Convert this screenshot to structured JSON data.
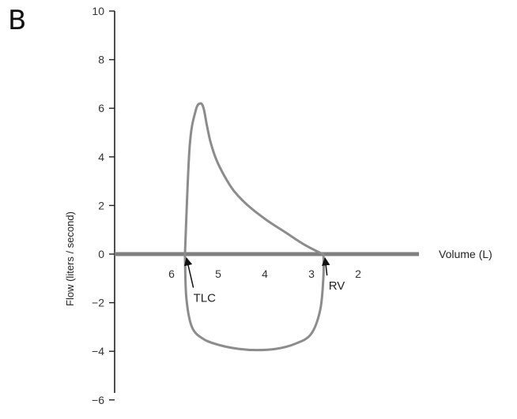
{
  "panel_label": "B",
  "chart_data": {
    "type": "line",
    "title": "",
    "xlabel": "Volume (L)",
    "ylabel": "Flow (liters / second)",
    "x_reversed": true,
    "xlim": [
      8,
      1.2
    ],
    "ylim": [
      -6.5,
      10
    ],
    "x_ticks": [
      6,
      5,
      4,
      3,
      2
    ],
    "x_tick_labels": [
      "6",
      "5",
      "4",
      "3",
      "2"
    ],
    "y_ticks": [
      10,
      8,
      6,
      4,
      2,
      0,
      -2,
      -4,
      -6
    ],
    "y_tick_labels": [
      "10",
      "8",
      "6",
      "4",
      "2",
      "0",
      "−2",
      "−4",
      "−6"
    ],
    "grid": false,
    "legend": "none",
    "series": [
      {
        "x": [
          5.95,
          5.85,
          5.72,
          5.62,
          5.55,
          5.48,
          5.4,
          5.28,
          5.1,
          4.9,
          4.6,
          4.2,
          3.8,
          3.4,
          3.05,
          2.98
        ],
        "values": [
          0.0,
          4.4,
          5.9,
          6.2,
          6.0,
          5.3,
          4.6,
          3.9,
          3.2,
          2.6,
          2.0,
          1.4,
          0.9,
          0.4,
          0.05,
          0.0
        ]
      },
      {
        "x": [
          5.95,
          5.92,
          5.8,
          5.55,
          5.2,
          4.8,
          4.4,
          4.0,
          3.6,
          3.25,
          3.05,
          2.98,
          2.98
        ],
        "values": [
          0.0,
          -1.8,
          -3.0,
          -3.5,
          -3.75,
          -3.9,
          -3.95,
          -3.9,
          -3.7,
          -3.3,
          -2.3,
          -0.9,
          0.0
        ]
      }
    ],
    "annotations": [
      {
        "label": "TLC",
        "x": 5.95,
        "y": 0,
        "text_x": 5.6,
        "text_y": -1.9
      },
      {
        "label": "RV",
        "x": 2.98,
        "y": 0,
        "text_x": 2.7,
        "text_y": -1.4
      }
    ],
    "colors": {
      "curve": "#8c8c8c",
      "zero_axis": "#7f7f7f",
      "axis": "#222222",
      "arrow": "#111111"
    }
  }
}
